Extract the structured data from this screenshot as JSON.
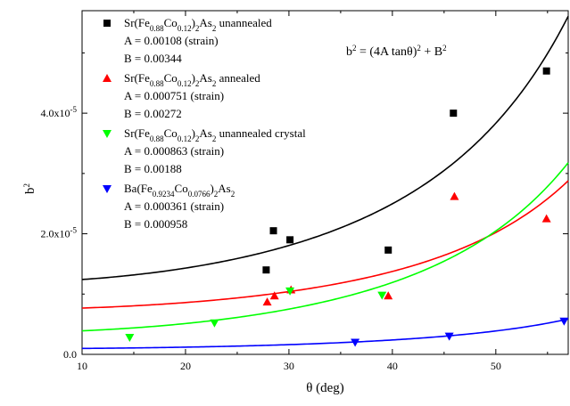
{
  "chart_data": {
    "type": "scatter",
    "xlabel": "θ (deg)",
    "ylabel": "b",
    "ylabel_sup": "2",
    "xlim": [
      10,
      57
    ],
    "ylim": [
      0,
      5.7e-05
    ],
    "xticks": [
      {
        "v": 10,
        "label": "10"
      },
      {
        "v": 20,
        "label": "20"
      },
      {
        "v": 30,
        "label": "30"
      },
      {
        "v": 40,
        "label": "40"
      },
      {
        "v": 50,
        "label": "50"
      }
    ],
    "yticks": [
      {
        "v": 0,
        "label": "0.0",
        "sup": ""
      },
      {
        "v": 2e-05,
        "label": "2.0x10",
        "sup": "-5"
      },
      {
        "v": 4e-05,
        "label": "4.0x10",
        "sup": "-5"
      }
    ],
    "formula": {
      "main": "b",
      "sup1": "2",
      "mid": " = (4A tanθ)",
      "sup2": "2",
      "tail": " + B",
      "sup3": "2"
    },
    "series": [
      {
        "name": "Sr(Fe0.88Co0.12)2As2 unannealed",
        "name_parts": [
          [
            "Sr(Fe",
            ""
          ],
          [
            "0.88",
            "sub"
          ],
          [
            "Co",
            ""
          ],
          [
            "0.12",
            "sub"
          ],
          [
            ")",
            ""
          ],
          [
            "2",
            "sub"
          ],
          [
            "As",
            ""
          ],
          [
            "2",
            "sub"
          ],
          [
            " unannealed",
            ""
          ]
        ],
        "lines": [
          "A = 0.00108 (strain)",
          "B = 0.00344"
        ],
        "A": 0.00108,
        "B": 0.00344,
        "color": "#000000",
        "marker": "square",
        "points": [
          [
            27.8,
            1.4e-05
          ],
          [
            28.5,
            2.05e-05
          ],
          [
            30.1,
            1.9e-05
          ],
          [
            39.6,
            1.73e-05
          ],
          [
            45.9,
            4e-05
          ],
          [
            54.9,
            4.7e-05
          ]
        ]
      },
      {
        "name": "Sr(Fe0.88Co0.12)2As2 annealed",
        "name_parts": [
          [
            "Sr(Fe",
            ""
          ],
          [
            "0.88",
            "sub"
          ],
          [
            "Co",
            ""
          ],
          [
            "0.12",
            "sub"
          ],
          [
            ")",
            ""
          ],
          [
            "2",
            "sub"
          ],
          [
            "As",
            ""
          ],
          [
            "2",
            "sub"
          ],
          [
            " annealed",
            ""
          ]
        ],
        "lines": [
          "A = 0.000751 (strain)",
          "B = 0.00272"
        ],
        "A": 0.000751,
        "B": 0.00272,
        "color": "#ff0000",
        "marker": "triangle-up",
        "points": [
          [
            27.9,
            8.7e-06
          ],
          [
            28.6,
            9.7e-06
          ],
          [
            30.2,
            1.07e-05
          ],
          [
            39.6,
            9.7e-06
          ],
          [
            46.0,
            2.62e-05
          ],
          [
            54.9,
            2.25e-05
          ]
        ]
      },
      {
        "name": "Sr(Fe0.88Co0.12)2As2 unannealed crystal",
        "name_parts": [
          [
            "Sr(Fe",
            ""
          ],
          [
            "0.88",
            "sub"
          ],
          [
            "Co",
            ""
          ],
          [
            "0.12",
            "sub"
          ],
          [
            ")",
            ""
          ],
          [
            "2",
            "sub"
          ],
          [
            "As",
            ""
          ],
          [
            "2",
            "sub"
          ],
          [
            " unannealed crystal",
            ""
          ]
        ],
        "lines": [
          "A = 0.000863 (strain)",
          "B = 0.00188"
        ],
        "A": 0.000863,
        "B": 0.00188,
        "color": "#00ff00",
        "marker": "triangle-down",
        "points": [
          [
            14.6,
            2.8e-06
          ],
          [
            22.8,
            5.2e-06
          ],
          [
            30.1,
            1.05e-05
          ],
          [
            39.0,
            9.8e-06
          ]
        ]
      },
      {
        "name": "Ba(Fe0.9234Co0.0766)2As2",
        "name_parts": [
          [
            "Ba(Fe",
            ""
          ],
          [
            "0.9234",
            "sub"
          ],
          [
            "Co",
            ""
          ],
          [
            "0.0766",
            "sub"
          ],
          [
            ")",
            ""
          ],
          [
            "2",
            "sub"
          ],
          [
            "As",
            ""
          ],
          [
            "2",
            "sub"
          ]
        ],
        "lines": [
          "A = 0.000361 (strain)",
          "B = 0.000958"
        ],
        "A": 0.000361,
        "B": 0.000958,
        "color": "#0000ff",
        "marker": "triangle-down",
        "points": [
          [
            36.4,
            2e-06
          ],
          [
            45.5,
            3e-06
          ],
          [
            56.6,
            5.5e-06
          ]
        ]
      }
    ]
  }
}
